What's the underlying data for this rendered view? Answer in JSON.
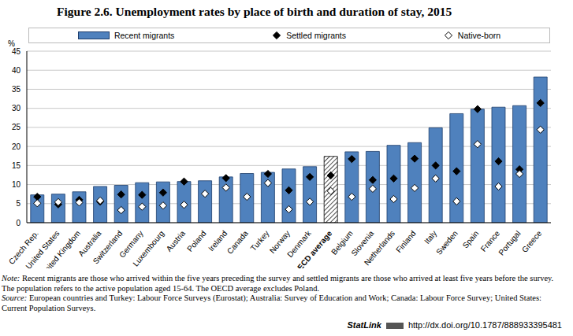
{
  "title": "Figure 2.6. Unemployment rates by place of birth and duration of stay, 2015",
  "note": "Note: Recent migrants are those who arrived within the five years preceding the survey and settled migrants are those who arrived at least five years before the survey. The population refers to the active population aged 15-64. The OECD average excludes Poland.",
  "source": "Source: European countries and Turkey: Labour Force Surveys (Eurostat); Australia: Survey of Education and Work; Canada: Labour Force Survey; United States: Current Population Surveys.",
  "statlink": {
    "label": "StatLink",
    "url": "http://dx.doi.org/10.1787/888933395481"
  },
  "chart_data": {
    "type": "bar",
    "y_label": "%",
    "categories": [
      "Czech Rep.",
      "United States",
      "United Kingdom",
      "Australia",
      "Switzerland",
      "Germany",
      "Luxembourg",
      "Austria",
      "Poland",
      "Ireland",
      "Canada",
      "Turkey",
      "Norway",
      "Denmark",
      "OECD average",
      "Belgium",
      "Slovenia",
      "Netherlands",
      "Finland",
      "Italy",
      "Sweden",
      "Spain",
      "France",
      "Portugal",
      "Greece"
    ],
    "series": [
      {
        "name": "Recent migrants",
        "type": "bar",
        "color": "#4f81bd",
        "colors": [
          "#4f81bd",
          "#4f81bd",
          "#4f81bd",
          "#4f81bd",
          "#4f81bd",
          "#4f81bd",
          "#4f81bd",
          "#4f81bd",
          "#4f81bd",
          "#4f81bd",
          "#4f81bd",
          "#4f81bd",
          "#4f81bd",
          "#4f81bd",
          "#000000",
          "#4f81bd",
          "#4f81bd",
          "#4f81bd",
          "#4f81bd",
          "#4f81bd",
          "#4f81bd",
          "#4f81bd",
          "#4f81bd",
          "#4f81bd",
          "#4f81bd"
        ],
        "values": [
          7.3,
          7.5,
          8.1,
          9.5,
          9.8,
          10.5,
          10.7,
          10.8,
          11.0,
          12.0,
          12.9,
          13.2,
          14.1,
          14.7,
          17.4,
          18.6,
          18.7,
          20.3,
          21.0,
          24.9,
          28.6,
          29.8,
          30.3,
          30.7,
          38.2
        ]
      },
      {
        "name": "Settled migrants",
        "type": "scatter",
        "marker": "diamond",
        "color": "#000000",
        "values": [
          6.8,
          4.8,
          6.0,
          5.5,
          7.4,
          7.3,
          7.9,
          10.8,
          null,
          11.7,
          null,
          12.8,
          8.5,
          12.0,
          12.4,
          16.7,
          11.2,
          11.6,
          16.8,
          15.0,
          13.5,
          29.8,
          16.1,
          14.0,
          31.4
        ]
      },
      {
        "name": "Native-born",
        "type": "scatter",
        "marker": "diamond",
        "color": "#ffffff",
        "values": [
          5.1,
          5.4,
          5.3,
          5.8,
          3.3,
          4.2,
          4.5,
          4.7,
          7.6,
          9.2,
          6.8,
          10.4,
          3.5,
          5.5,
          8.3,
          6.8,
          8.9,
          6.2,
          9.1,
          11.6,
          5.6,
          20.6,
          9.5,
          12.8,
          24.4
        ]
      }
    ],
    "ylim": [
      0,
      45
    ],
    "yticks": [
      0,
      5,
      10,
      15,
      20,
      25,
      30,
      35,
      40,
      45
    ],
    "grid": true
  }
}
